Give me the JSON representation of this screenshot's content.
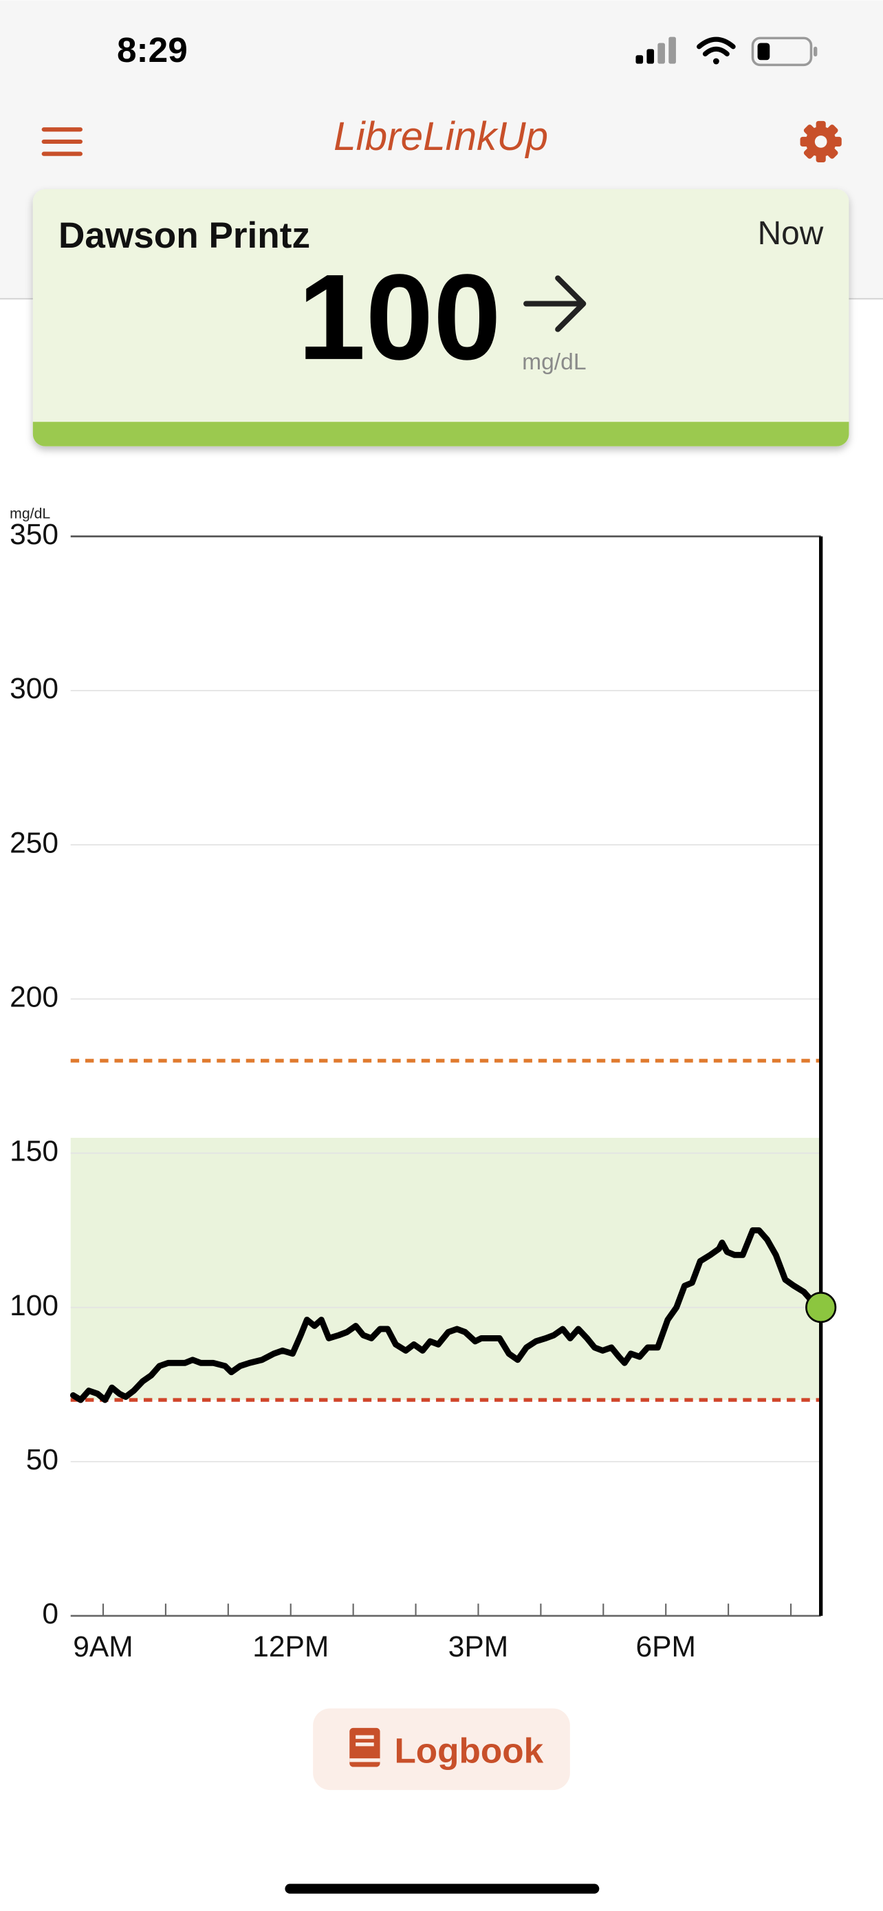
{
  "status_bar": {
    "time": "8:29"
  },
  "header": {
    "title": "LibreLinkUp"
  },
  "card": {
    "name": "Dawson Printz",
    "time": "Now",
    "value": "100",
    "unit": "mg/dL"
  },
  "chart_data": {
    "type": "line",
    "y_label": "mg/dL",
    "ylim": [
      0,
      350
    ],
    "yticks": [
      0,
      50,
      100,
      150,
      200,
      250,
      300,
      350
    ],
    "xlim": [
      8.48,
      20.48
    ],
    "xticks": [
      {
        "value": 9,
        "label": "9AM"
      },
      {
        "value": 12,
        "label": "12PM"
      },
      {
        "value": 15,
        "label": "3PM"
      },
      {
        "value": 18,
        "label": "6PM"
      }
    ],
    "xminorticks": [
      10,
      11,
      13,
      14,
      16,
      17,
      19,
      20
    ],
    "grid": true,
    "target_band": [
      70,
      155
    ],
    "target_band_color": "#eaf3dc",
    "target_high": 180,
    "target_high_color": "#e07a2e",
    "target_low": 70,
    "target_low_color": "#d0452a",
    "current_marker_color": "#8cc63f",
    "x": [
      8.52,
      8.64,
      8.77,
      8.91,
      9.03,
      9.14,
      9.26,
      9.36,
      9.49,
      9.63,
      9.77,
      9.9,
      10.04,
      10.17,
      10.31,
      10.43,
      10.56,
      10.76,
      10.95,
      11.05,
      11.19,
      11.34,
      11.54,
      11.73,
      11.87,
      12.03,
      12.16,
      12.26,
      12.38,
      12.49,
      12.61,
      12.77,
      12.9,
      13.04,
      13.16,
      13.29,
      13.43,
      13.55,
      13.68,
      13.84,
      13.97,
      14.11,
      14.23,
      14.36,
      14.52,
      14.66,
      14.79,
      14.95,
      15.05,
      15.18,
      15.34,
      15.49,
      15.63,
      15.77,
      15.92,
      16.08,
      16.21,
      16.35,
      16.47,
      16.6,
      16.74,
      16.86,
      16.99,
      17.13,
      17.25,
      17.34,
      17.44,
      17.58,
      17.71,
      17.87,
      18.03,
      18.17,
      18.3,
      18.42,
      18.55,
      18.71,
      18.85,
      18.9,
      18.98,
      19.1,
      19.23,
      19.39,
      19.49,
      19.62,
      19.76,
      19.91,
      20.05,
      20.21,
      20.34,
      20.48
    ],
    "series": [
      {
        "color": "#000000",
        "values": [
          71.5,
          70,
          73,
          72,
          70,
          74,
          72,
          71,
          73,
          76,
          78,
          81,
          82,
          82,
          82,
          83,
          82,
          82,
          81,
          79,
          81,
          82,
          83,
          85,
          86,
          85,
          91,
          96,
          94,
          96,
          90,
          91,
          92,
          94,
          91,
          90,
          93,
          93,
          88,
          86,
          88,
          86,
          89,
          88,
          92,
          93,
          92,
          89,
          90,
          90,
          90,
          85,
          83,
          87,
          89,
          90,
          91,
          93,
          90,
          93,
          90,
          87,
          86,
          87,
          84,
          82,
          85,
          84,
          87,
          87,
          96,
          100,
          107,
          108,
          115,
          117,
          119,
          121,
          118,
          117,
          117,
          125,
          125,
          122,
          117,
          109,
          107,
          105,
          102,
          100
        ]
      }
    ]
  },
  "button": {
    "label": "Logbook"
  }
}
